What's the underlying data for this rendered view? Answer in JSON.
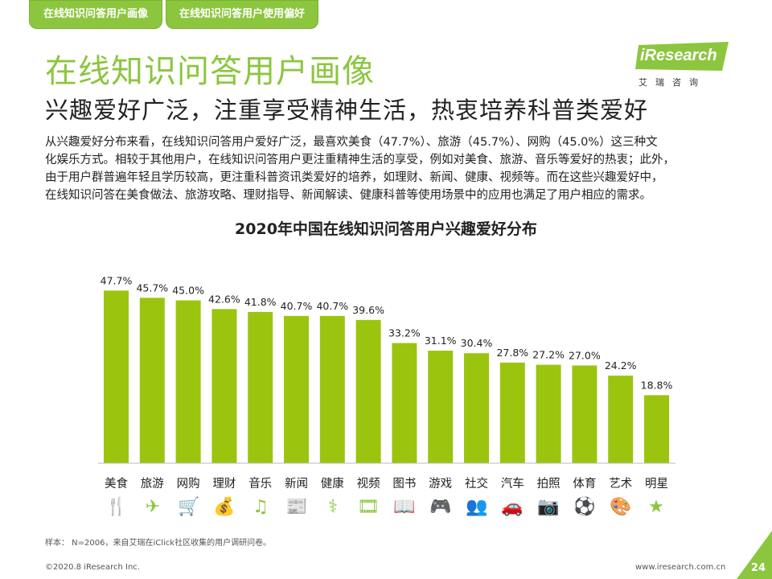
{
  "tabs": [
    "在线知识问答用户画像",
    "在线知识问答用户使用偏好"
  ],
  "title": "在线知识问答用户画像",
  "subtitle": "兴趣爱好广泛，注重享受精神生活，热衷培养科普类爱好",
  "logo": {
    "brand": "iResearch",
    "chinese": "艾瑞咨询"
  },
  "paragraph": [
    "从兴趣爱好分布来看，在线知识问答用户爱好广泛，最喜欢美食（47.7%）、旅游（45.7%）、网购（45.0%）这三种文",
    "化娱乐方式。相较于其他用户，在线知识问答用户更注重精神生活的享受，例如对美食、旅游、音乐等爱好的热衷；此外，",
    "由于用户群普遍年轻且学历较高，更注重科普资讯类爱好的培养，如理财、新闻、健康、视频等。而在这些兴趣爱好中，",
    "在线知识问答在美食做法、旅游攻略、理财指导、新闻解读、健康科普等使用场景中的应用也满足了用户相应的需求。"
  ],
  "chart_data": {
    "type": "bar",
    "title": "2020年中国在线知识问答用户兴趣爱好分布",
    "categories": [
      "美食",
      "旅游",
      "网购",
      "理财",
      "音乐",
      "新闻",
      "健康",
      "视频",
      "图书",
      "游戏",
      "社交",
      "汽车",
      "拍照",
      "体育",
      "艺术",
      "明星"
    ],
    "values": [
      47.7,
      45.7,
      45.0,
      42.6,
      41.8,
      40.7,
      40.7,
      39.6,
      33.2,
      31.1,
      30.4,
      27.8,
      27.2,
      27.0,
      24.2,
      18.8
    ],
    "value_labels": [
      "47.7%",
      "45.7%",
      "45.0%",
      "42.6%",
      "41.8%",
      "40.7%",
      "40.7%",
      "39.6%",
      "33.2%",
      "31.1%",
      "30.4%",
      "27.8%",
      "27.2%",
      "27.0%",
      "24.2%",
      "18.8%"
    ],
    "ylim": [
      0,
      50
    ],
    "bar_color": "#9bc40f",
    "grid": false
  },
  "icons": [
    "utensils-icon",
    "airplane-icon",
    "shopping-cart-icon",
    "money-icon",
    "music-icon",
    "newspaper-icon",
    "health-icon",
    "video-icon",
    "book-icon",
    "gamepad-icon",
    "social-icon",
    "car-icon",
    "camera-icon",
    "sports-icon",
    "art-icon",
    "star-icon"
  ],
  "footer": {
    "note": "样本： N=2006，来自艾瑞在iClick社区收集的用户调研问卷。",
    "copyright": "©2020.8 iResearch Inc.",
    "website": "www.iresearch.com.cn",
    "page": "24"
  },
  "colors": {
    "accent": "#8cc63f",
    "bar": "#9bc40f"
  }
}
